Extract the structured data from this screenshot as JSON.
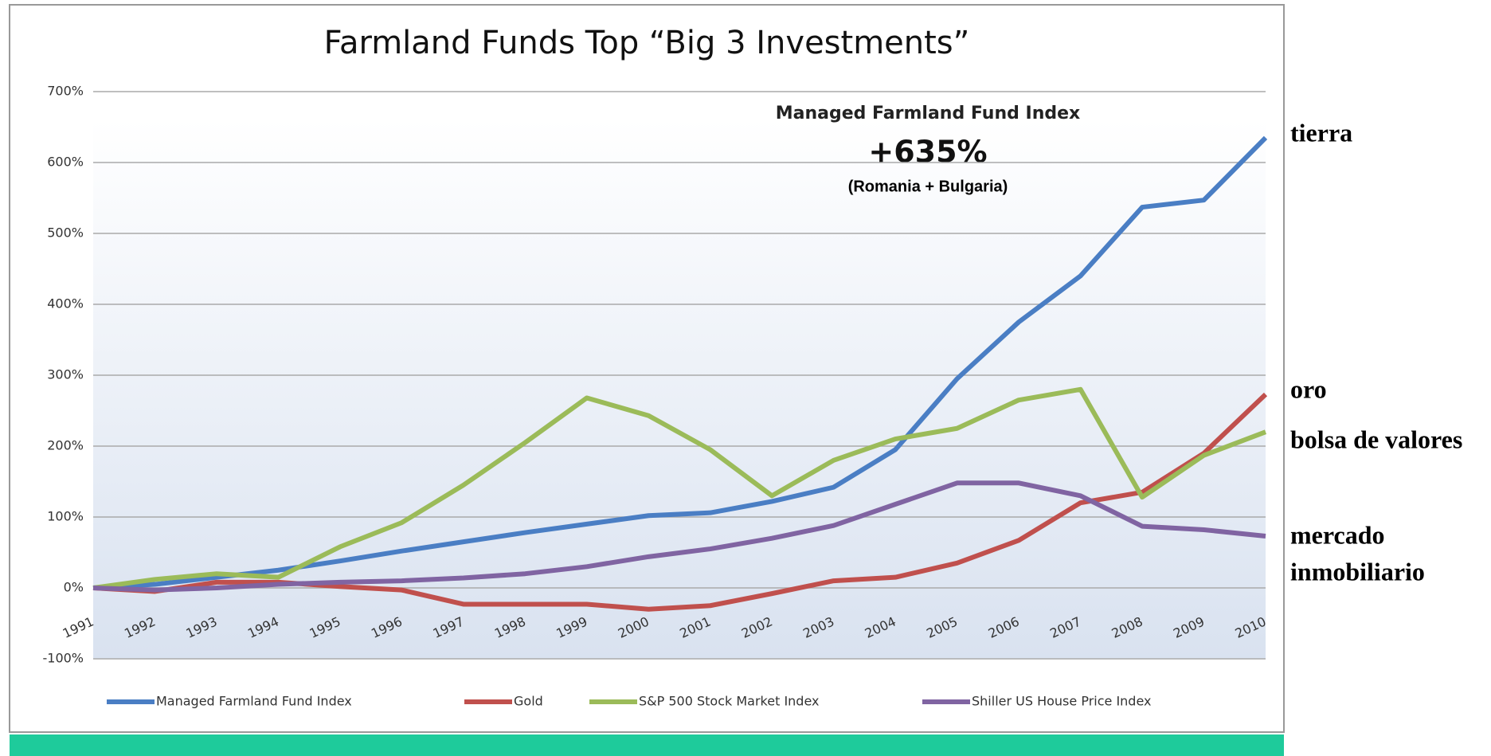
{
  "chart_data": {
    "type": "line",
    "title": "Farmland Funds Top “Big 3 Investments”",
    "annotation_title": "Managed Farmland Fund Index",
    "annotation_value": "+635%",
    "annotation_note": "(Romania + Bulgaria)",
    "categories": [
      "1991",
      "1992",
      "1993",
      "1994",
      "1995",
      "1996",
      "1997",
      "1998",
      "1999",
      "2000",
      "2001",
      "2002",
      "2003",
      "2004",
      "2005",
      "2006",
      "2007",
      "2008",
      "2009",
      "2010"
    ],
    "series": [
      {
        "name": "Managed Farmland Fund Index",
        "color": "#4a7ec4",
        "values": [
          0,
          5,
          15,
          25,
          38,
          52,
          65,
          78,
          90,
          102,
          106,
          122,
          142,
          195,
          295,
          375,
          440,
          537,
          547,
          635
        ]
      },
      {
        "name": "Gold",
        "color": "#c0504d",
        "values": [
          0,
          -5,
          8,
          8,
          2,
          -3,
          -23,
          -23,
          -23,
          -30,
          -25,
          -8,
          10,
          15,
          35,
          67,
          120,
          135,
          190,
          273
        ]
      },
      {
        "name": "S&P 500 Stock Market Index",
        "color": "#9bbb59",
        "values": [
          0,
          12,
          20,
          15,
          58,
          92,
          145,
          205,
          268,
          243,
          195,
          130,
          180,
          210,
          225,
          265,
          280,
          128,
          187,
          220
        ]
      },
      {
        "name": "Shiller US House Price Index",
        "color": "#8064a2",
        "values": [
          0,
          -3,
          0,
          5,
          8,
          10,
          14,
          20,
          30,
          44,
          55,
          70,
          88,
          118,
          148,
          148,
          130,
          87,
          82,
          73
        ]
      }
    ],
    "ylim": [
      -100,
      700
    ],
    "yticks": [
      {
        "value": -100,
        "label": "-100%"
      },
      {
        "value": 0,
        "label": "0%"
      },
      {
        "value": 100,
        "label": "100%"
      },
      {
        "value": 200,
        "label": "200%"
      },
      {
        "value": 300,
        "label": "300%"
      },
      {
        "value": 400,
        "label": "400%"
      },
      {
        "value": 500,
        "label": "500%"
      },
      {
        "value": 600,
        "label": "600%"
      },
      {
        "value": 700,
        "label": "700%"
      }
    ],
    "grid": true,
    "legend": "bottom",
    "side_labels": [
      "tierra",
      "oro",
      "bolsa de valores",
      "mercado",
      "inmobiliario"
    ]
  }
}
